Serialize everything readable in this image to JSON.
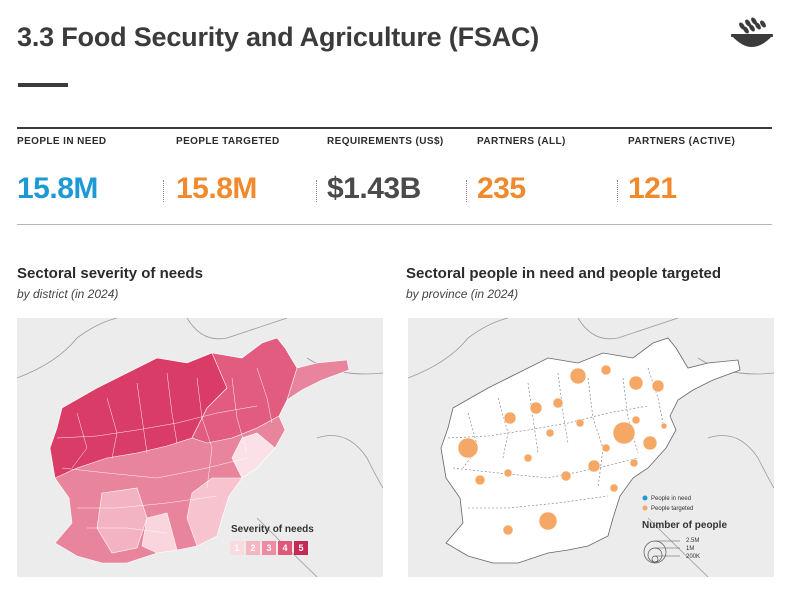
{
  "header": {
    "title": "3.3 Food Security and Agriculture (FSAC)",
    "icon": "food-bowl-icon"
  },
  "kpis": [
    {
      "label": "PEOPLE IN NEED",
      "value": "15.8M",
      "color": "#1d9ad6"
    },
    {
      "label": "PEOPLE TARGETED",
      "value": "15.8M",
      "color": "#f08a2c"
    },
    {
      "label": "REQUIREMENTS (US$)",
      "value": "$1.43B",
      "color": "#4a4a4a"
    },
    {
      "label": "PARTNERS (ALL)",
      "value": "235",
      "color": "#f08a2c"
    },
    {
      "label": "PARTNERS (ACTIVE)",
      "value": "121",
      "color": "#f08a2c"
    }
  ],
  "severity_map": {
    "title": "Sectoral severity of needs",
    "subtitle": "by district (in 2024)",
    "legend_title": "Severity of needs",
    "legend_items": [
      "1",
      "2",
      "3",
      "4",
      "5"
    ],
    "legend_colors": [
      "#fadbe2",
      "#f6b5c3",
      "#ee8aa1",
      "#e1577a",
      "#c42a55"
    ]
  },
  "pin_map": {
    "title": "Sectoral people in need and people targeted",
    "subtitle": "by province (in 2024)",
    "legend_series": [
      "People in need",
      "People targeted"
    ],
    "series_colors": [
      "#1d9ad6",
      "#f5a765"
    ],
    "size_title": "Number of people",
    "size_labels": [
      "2.5M",
      "1M",
      "200K"
    ]
  }
}
